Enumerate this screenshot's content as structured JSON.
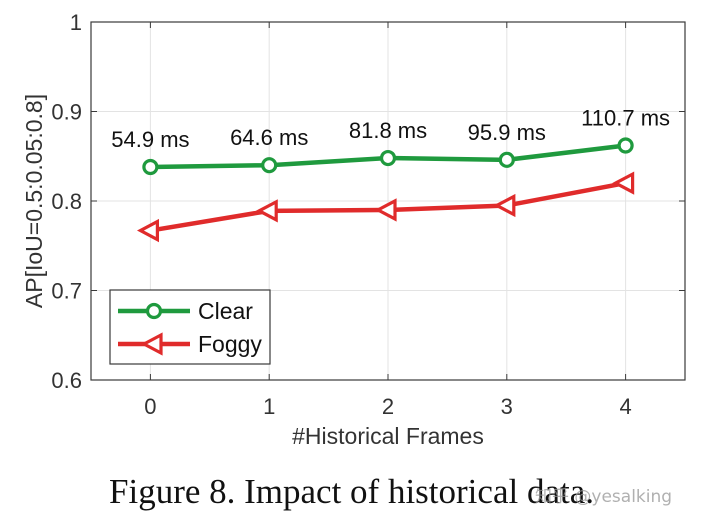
{
  "chart_data": {
    "type": "line",
    "title": "",
    "xlabel": "#Historical Frames",
    "ylabel": "AP[IoU=0.5:0.05:0.8]",
    "x": [
      0,
      1,
      2,
      3,
      4
    ],
    "x_tick_labels": [
      "0",
      "1",
      "2",
      "3",
      "4"
    ],
    "xlim": [
      -0.5,
      4.5
    ],
    "ylim": [
      0.6,
      1.0
    ],
    "y_ticks": [
      0.6,
      0.7,
      0.8,
      0.9,
      1.0
    ],
    "y_tick_labels": [
      "0.6",
      "0.7",
      "0.8",
      "0.9",
      "1"
    ],
    "grid": true,
    "legend_position": "bottom-left",
    "series": [
      {
        "name": "Clear",
        "values": [
          0.838,
          0.84,
          0.848,
          0.846,
          0.862
        ],
        "color": "#1f9a3e",
        "marker": "circle"
      },
      {
        "name": "Foggy",
        "values": [
          0.767,
          0.789,
          0.79,
          0.795,
          0.82
        ],
        "color": "#e02b2b",
        "marker": "triangle-left"
      }
    ],
    "annotations": [
      "54.9 ms",
      "64.6 ms",
      "81.8 ms",
      "95.9 ms",
      "110.7 ms"
    ]
  },
  "caption": "Figure 8. Impact of historical data.",
  "watermark": "知乎 @yesalking"
}
